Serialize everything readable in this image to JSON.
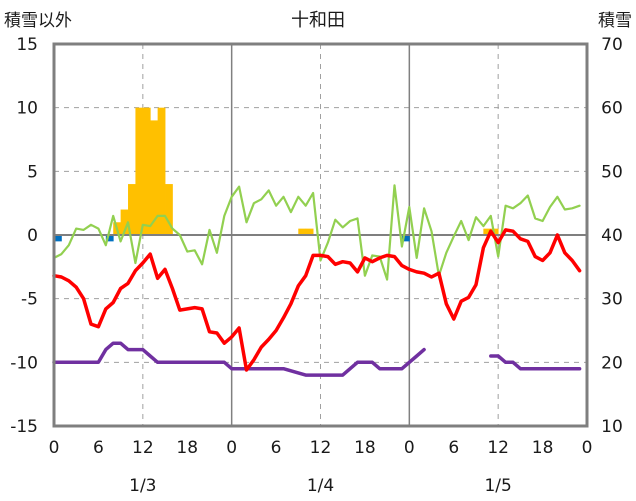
{
  "chart_data": {
    "type": "line",
    "title": "十和田",
    "ylabel_left": "積雪以外",
    "ylabel_right": "積雪",
    "ylim_left": [
      -15,
      15
    ],
    "yticks_left": [
      "15",
      "10",
      "5",
      "0",
      "-5",
      "-10",
      "-15"
    ],
    "ylim_right": [
      10,
      70
    ],
    "yticks_right": [
      "70",
      "60",
      "50",
      "40",
      "30",
      "20",
      "10"
    ],
    "x_range": [
      0,
      72
    ],
    "x_ticks": [
      "0",
      "6",
      "12",
      "18",
      "0",
      "6",
      "12",
      "18",
      "0",
      "6",
      "12",
      "18",
      "0"
    ],
    "date_labels": [
      "1/3",
      "1/4",
      "1/5"
    ],
    "date_positions": [
      12,
      36,
      60
    ],
    "day_boundaries": [
      24,
      48
    ],
    "dashed_hours": [
      12,
      36,
      60
    ],
    "grid_left_values": [
      10,
      5,
      -5,
      -10
    ],
    "colors": {
      "snow_depth": "#ffc000",
      "precip": "#0070c0",
      "temperature": "#ff0000",
      "green_series": "#92d050",
      "purple_series": "#7030a0",
      "zero_line": "#7f7f7f",
      "grid_major": "#808080",
      "grid_minor": "#a0a0a0"
    },
    "series": [
      {
        "key": "snow_depth",
        "type": "bar",
        "axis": "right",
        "x": [
          8,
          9,
          10,
          11,
          12,
          13,
          14,
          15,
          33,
          34,
          58,
          59,
          60
        ],
        "values": [
          42,
          44,
          48,
          60,
          60,
          58,
          60,
          48,
          41,
          41,
          41,
          41,
          40
        ]
      },
      {
        "key": "precip",
        "type": "bar",
        "axis": "left",
        "x": [
          0,
          7,
          47
        ],
        "values": [
          -0.5,
          -0.5,
          -0.5
        ]
      },
      {
        "key": "temperature",
        "type": "line",
        "axis": "left",
        "points": [
          [
            0,
            -3.2
          ],
          [
            1,
            -3.3
          ],
          [
            2,
            -3.6
          ],
          [
            3,
            -4.1
          ],
          [
            4,
            -5.0
          ],
          [
            5,
            -7.0
          ],
          [
            6,
            -7.2
          ],
          [
            7,
            -5.8
          ],
          [
            8,
            -5.3
          ],
          [
            9,
            -4.2
          ],
          [
            10,
            -3.8
          ],
          [
            11,
            -2.8
          ],
          [
            12,
            -2.2
          ],
          [
            13,
            -1.5
          ],
          [
            14,
            -3.4
          ],
          [
            15,
            -2.7
          ],
          [
            16,
            -4.2
          ],
          [
            17,
            -5.9
          ],
          [
            18,
            -5.8
          ],
          [
            19,
            -5.7
          ],
          [
            20,
            -5.8
          ],
          [
            21,
            -7.6
          ],
          [
            22,
            -7.7
          ],
          [
            23,
            -8.5
          ],
          [
            24,
            -8.0
          ],
          [
            25,
            -7.3
          ],
          [
            26,
            -10.6
          ],
          [
            27,
            -9.8
          ],
          [
            28,
            -8.8
          ],
          [
            29,
            -8.2
          ],
          [
            30,
            -7.5
          ],
          [
            31,
            -6.5
          ],
          [
            32,
            -5.4
          ],
          [
            33,
            -4.0
          ],
          [
            34,
            -3.2
          ],
          [
            35,
            -1.6
          ],
          [
            36,
            -1.6
          ],
          [
            37,
            -1.7
          ],
          [
            38,
            -2.3
          ],
          [
            39,
            -2.1
          ],
          [
            40,
            -2.2
          ],
          [
            41,
            -2.9
          ],
          [
            42,
            -1.8
          ],
          [
            43,
            -2.1
          ],
          [
            44,
            -1.8
          ],
          [
            45,
            -1.6
          ],
          [
            46,
            -1.7
          ],
          [
            47,
            -2.4
          ],
          [
            48,
            -2.7
          ],
          [
            49,
            -2.9
          ],
          [
            50,
            -3.0
          ],
          [
            51,
            -3.3
          ],
          [
            52,
            -3.0
          ],
          [
            53,
            -5.4
          ],
          [
            54,
            -6.6
          ],
          [
            55,
            -5.2
          ],
          [
            56,
            -4.9
          ],
          [
            57,
            -3.9
          ],
          [
            58,
            -1.0
          ],
          [
            59,
            0.3
          ],
          [
            60,
            -0.6
          ],
          [
            61,
            0.4
          ],
          [
            62,
            0.3
          ],
          [
            63,
            -0.3
          ],
          [
            64,
            -0.5
          ],
          [
            65,
            -1.7
          ],
          [
            66,
            -2.0
          ],
          [
            67,
            -1.4
          ],
          [
            68,
            0.0
          ],
          [
            69,
            -1.4
          ],
          [
            70,
            -2.0
          ],
          [
            71,
            -2.8
          ]
        ]
      },
      {
        "key": "green_series",
        "type": "line",
        "axis": "left",
        "points": [
          [
            0,
            -1.8
          ],
          [
            1,
            -1.5
          ],
          [
            2,
            -0.8
          ],
          [
            3,
            0.5
          ],
          [
            4,
            0.4
          ],
          [
            5,
            0.8
          ],
          [
            6,
            0.5
          ],
          [
            7,
            -0.8
          ],
          [
            8,
            1.5
          ],
          [
            9,
            -0.5
          ],
          [
            10,
            1.0
          ],
          [
            11,
            -2.2
          ],
          [
            12,
            0.8
          ],
          [
            13,
            0.7
          ],
          [
            14,
            1.5
          ],
          [
            15,
            1.5
          ],
          [
            16,
            0.5
          ],
          [
            17,
            0.0
          ],
          [
            18,
            -1.3
          ],
          [
            19,
            -1.2
          ],
          [
            20,
            -2.3
          ],
          [
            21,
            0.4
          ],
          [
            22,
            -1.4
          ],
          [
            23,
            1.5
          ],
          [
            24,
            3.0
          ],
          [
            25,
            3.8
          ],
          [
            26,
            1.0
          ],
          [
            27,
            2.5
          ],
          [
            28,
            2.8
          ],
          [
            29,
            3.5
          ],
          [
            30,
            2.3
          ],
          [
            31,
            3.0
          ],
          [
            32,
            1.8
          ],
          [
            33,
            3.0
          ],
          [
            34,
            2.3
          ],
          [
            35,
            3.3
          ],
          [
            36,
            -2.0
          ],
          [
            37,
            -0.6
          ],
          [
            38,
            1.2
          ],
          [
            39,
            0.6
          ],
          [
            40,
            1.1
          ],
          [
            41,
            1.3
          ],
          [
            42,
            -3.2
          ],
          [
            43,
            -1.6
          ],
          [
            44,
            -1.7
          ],
          [
            45,
            -3.5
          ],
          [
            46,
            3.9
          ],
          [
            47,
            -0.9
          ],
          [
            48,
            2.2
          ],
          [
            49,
            -1.8
          ],
          [
            50,
            2.1
          ],
          [
            51,
            0.3
          ],
          [
            52,
            -3.2
          ],
          [
            53,
            -1.4
          ],
          [
            54,
            -0.1
          ],
          [
            55,
            1.1
          ],
          [
            56,
            -0.4
          ],
          [
            57,
            1.4
          ],
          [
            58,
            0.7
          ],
          [
            59,
            1.5
          ],
          [
            60,
            -1.7
          ],
          [
            61,
            2.3
          ],
          [
            62,
            2.1
          ],
          [
            63,
            2.5
          ],
          [
            64,
            3.1
          ],
          [
            65,
            1.3
          ],
          [
            66,
            1.1
          ],
          [
            67,
            2.2
          ],
          [
            68,
            3.0
          ],
          [
            69,
            2.0
          ],
          [
            70,
            2.1
          ],
          [
            71,
            2.3
          ]
        ]
      },
      {
        "key": "purple_series",
        "type": "line",
        "axis": "right",
        "segments": [
          [
            [
              0,
              20
            ],
            [
              6,
              20
            ],
            [
              7,
              22
            ],
            [
              8,
              23
            ],
            [
              9,
              23
            ],
            [
              10,
              22
            ],
            [
              12,
              22
            ],
            [
              13,
              21
            ],
            [
              14,
              20
            ],
            [
              23,
              20
            ],
            [
              24,
              19
            ],
            [
              31,
              19
            ],
            [
              34,
              18
            ],
            [
              39,
              18
            ],
            [
              41,
              20
            ],
            [
              43,
              20
            ],
            [
              44,
              19
            ],
            [
              47,
              19
            ],
            [
              49,
              21
            ],
            [
              50,
              22
            ]
          ],
          [
            [
              59,
              21
            ],
            [
              60,
              21
            ],
            [
              61,
              20
            ],
            [
              62,
              20
            ],
            [
              63,
              19
            ],
            [
              71,
              19
            ]
          ]
        ]
      }
    ]
  }
}
